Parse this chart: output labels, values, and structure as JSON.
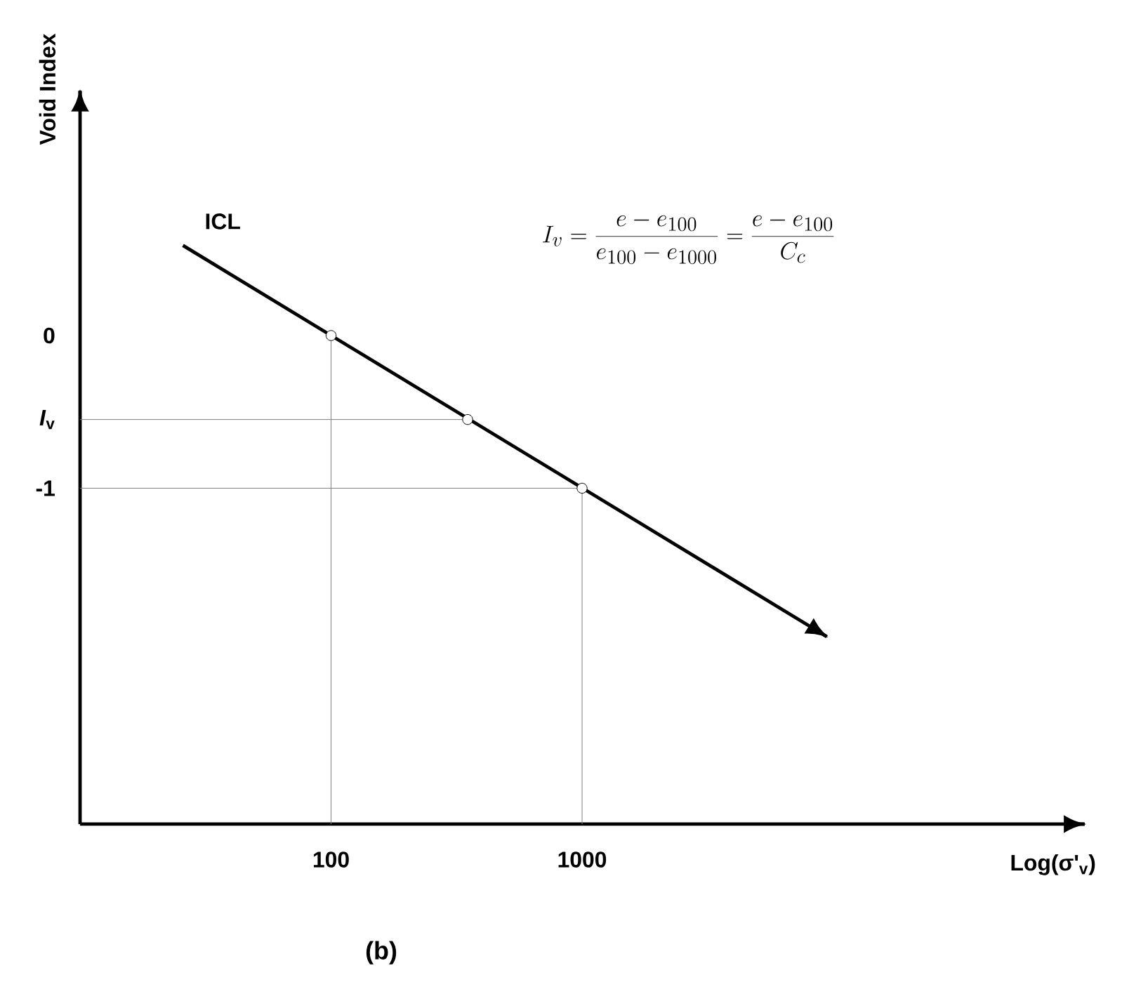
{
  "chart_data": {
    "type": "line",
    "log": "x",
    "xlabel": "Log(σ'$_{v}$)",
    "ylabel": "Void Index",
    "xlim": [
      10,
      100000
    ],
    "ylim": [
      -3.2,
      1.6
    ],
    "xticks": [
      100,
      1000
    ],
    "yticks": [
      0,
      {
        "value": -0.55,
        "label": "*I*$_{v}$"
      },
      -1
    ],
    "grid": false,
    "series": [
      {
        "name": "ICL",
        "marker": "none",
        "color": "#000000",
        "x": [
          25.7,
          9400
        ],
        "values": [
          0.59,
          -1.97
        ]
      },
      {
        "type": "scatter",
        "marker": "circle",
        "color": "#000000",
        "x": [
          100,
          350,
          1000
        ],
        "values": [
          0,
          -0.55,
          -1
        ]
      }
    ],
    "ref_lines": [
      {
        "axis": "x",
        "value": 100,
        "color": "#808080"
      },
      {
        "axis": "x",
        "value": 1000,
        "color": "#808080"
      },
      {
        "axis": "y",
        "value": -0.55,
        "color": "#808080"
      },
      {
        "axis": "y",
        "value": -1,
        "color": "#808080"
      }
    ],
    "annotations": [
      "I_v = \\frac{e-e_{100}}{e_{100}-e_{1000}} = \\frac{e-e_{100}}{C_c}",
      "(b)"
    ]
  }
}
